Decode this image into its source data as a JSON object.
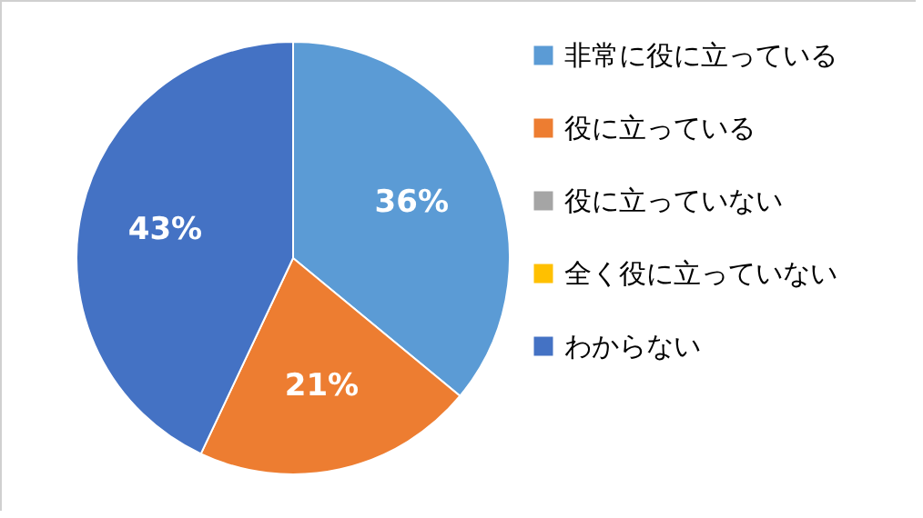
{
  "chart_data": {
    "type": "pie",
    "categories": [
      "非常に役に立っている",
      "役に立っている",
      "役に立っていない",
      "全く役に立っていない",
      "わからない"
    ],
    "values": [
      36,
      21,
      0,
      0,
      43
    ],
    "colors": [
      "#5b9bd5",
      "#ed7d31",
      "#a5a5a5",
      "#ffc000",
      "#4472c4"
    ],
    "value_labels": [
      "36%",
      "21%",
      null,
      null,
      "43%"
    ],
    "legend": "right"
  }
}
